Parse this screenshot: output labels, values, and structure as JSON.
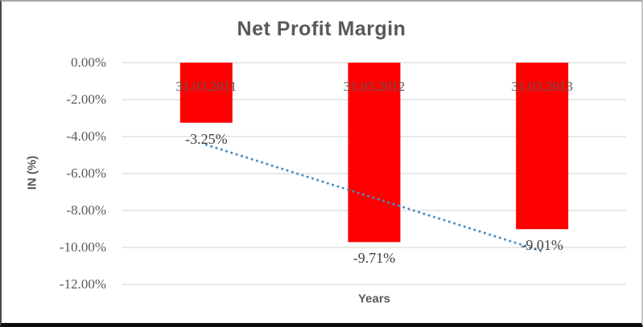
{
  "chart_data": {
    "type": "bar",
    "title": "Net Profit Margin",
    "xlabel": "Years",
    "ylabel": "IN (%)",
    "categories": [
      "31.03.2011",
      "31.03.2012",
      "31.03.2013"
    ],
    "series": [
      {
        "name": "Net Profit Margin",
        "values": [
          -3.25,
          -9.71,
          -9.01
        ]
      }
    ],
    "data_labels": [
      "-3.25%",
      "-9.71%",
      "-9.01%"
    ],
    "ylim": [
      -12,
      0
    ],
    "yticks": [
      {
        "value": 0,
        "label": "0.00%"
      },
      {
        "value": -2,
        "label": "-2.00%"
      },
      {
        "value": -4,
        "label": "-4.00%"
      },
      {
        "value": -6,
        "label": "-6.00%"
      },
      {
        "value": -8,
        "label": "-8.00%"
      },
      {
        "value": -10,
        "label": "-10.00%"
      },
      {
        "value": -12,
        "label": "-12.00%"
      }
    ],
    "grid": true,
    "legend": false,
    "trendline": {
      "type": "linear",
      "style": "dotted",
      "color": "#4a8bc4"
    },
    "colors": {
      "bar": "#ff0000",
      "gridline": "#d9d9d9",
      "axis_text": "#595959",
      "title_text": "#595959",
      "data_label_text": "#3f3f3f"
    }
  }
}
